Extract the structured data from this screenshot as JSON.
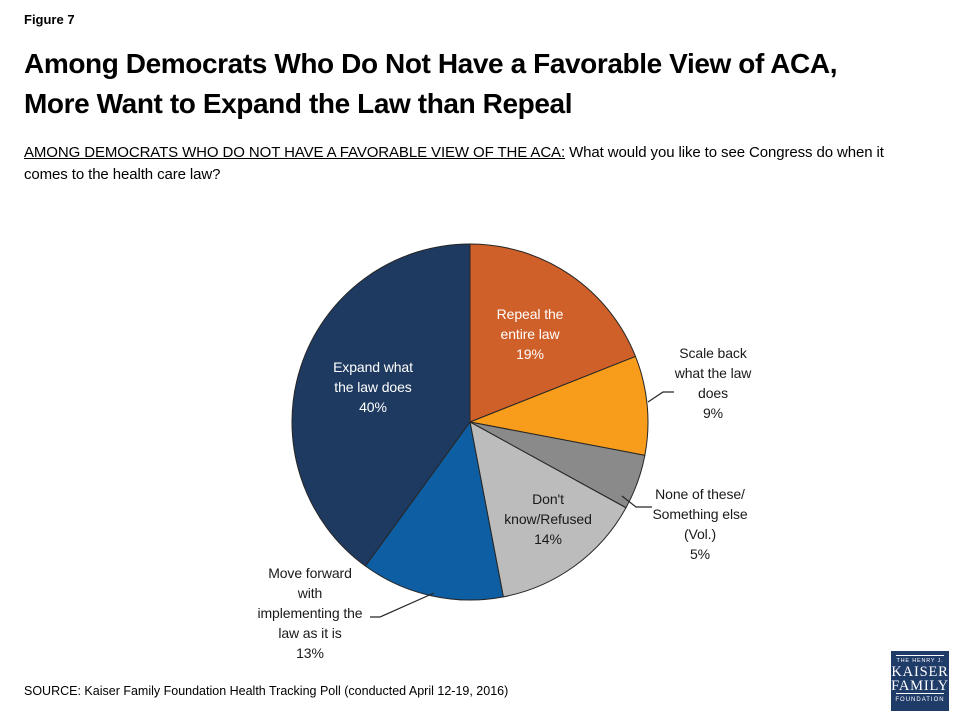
{
  "header": {
    "figure_label": "Figure 7",
    "title": "Among Democrats Who Do Not Have a Favorable View of ACA,\nMore Want to Expand the Law than Repeal",
    "subtitle_underlined": "AMONG DEMOCRATS WHO DO NOT HAVE A FAVORABLE VIEW OF THE ACA:",
    "subtitle_rest": " What would you like to see Congress do when it comes to the health care law?"
  },
  "chart_data": {
    "type": "pie",
    "title": "Among Democrats Who Do Not Have a Favorable View of ACA, More Want to Expand the Law than Repeal",
    "question": "AMONG DEMOCRATS WHO DO NOT HAVE A FAVORABLE VIEW OF THE ACA: What would you like to see Congress do when it comes to the health care law?",
    "units": "percent",
    "start_angle": "12 o'clock",
    "direction": "clockwise",
    "outline_color": "#262626",
    "slices": [
      {
        "key": "repeal",
        "name": "Repeal the entire law",
        "value": 19,
        "color": "#D0602A",
        "label": "Repeal the\nentire law\n19%",
        "label_color": "#FFFFFF",
        "label_placement": "inside"
      },
      {
        "key": "scale-back",
        "name": "Scale back what the law does",
        "value": 9,
        "color": "#F79C1B",
        "label": "Scale back\nwhat the law\ndoes\n9%",
        "label_color": "#1A1A1A",
        "label_placement": "outside-right"
      },
      {
        "key": "none-something-else",
        "name": "None of these/Something else (Vol.)",
        "value": 5,
        "color": "#8A8A8A",
        "label": "None of these/\nSomething else\n(Vol.)\n5%",
        "label_color": "#1A1A1A",
        "label_placement": "outside-right"
      },
      {
        "key": "dont-know",
        "name": "Don't know/Refused",
        "value": 14,
        "color": "#BCBCBC",
        "label": "Don't\nknow/Refused\n14%",
        "label_color": "#1A1A1A",
        "label_placement": "inside"
      },
      {
        "key": "move-forward",
        "name": "Move forward with implementing the law as it is",
        "value": 13,
        "color": "#0D5EA2",
        "label": "Move forward\nwith\nimplementing the\nlaw as it is\n13%",
        "label_color": "#1A1A1A",
        "label_placement": "outside-bottom-left"
      },
      {
        "key": "expand",
        "name": "Expand what the law does",
        "value": 40,
        "color": "#1E3A60",
        "label": "Expand what\nthe law does\n40%",
        "label_color": "#FFFFFF",
        "label_placement": "inside"
      }
    ]
  },
  "footer": {
    "source": "SOURCE: Kaiser Family Foundation Health Tracking Poll (conducted April 12-19, 2016)"
  },
  "logo": {
    "line1": "THE HENRY J.",
    "line2": "KAISER",
    "line3": "FAMILY",
    "line4": "FOUNDATION",
    "background": "#1F3B68"
  }
}
